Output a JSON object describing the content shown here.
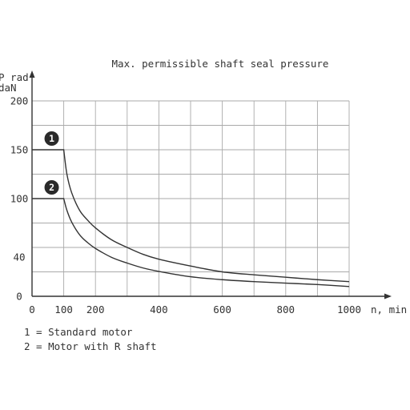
{
  "chart_data": {
    "type": "line",
    "title": "Max. permissible shaft seal pressure",
    "ylabel_line1": "P rad",
    "ylabel_line2": "daN",
    "xlabel": "n, min",
    "x_ticks": [
      0,
      100,
      200,
      400,
      600,
      800,
      1000
    ],
    "y_ticks": [
      0,
      40,
      100,
      150,
      200
    ],
    "xlim": [
      0,
      1000
    ],
    "ylim": [
      0,
      200
    ],
    "grid": true,
    "series": [
      {
        "name": "1",
        "label": "1",
        "color": "#333333",
        "points": [
          [
            0,
            150
          ],
          [
            100,
            150
          ],
          [
            110,
            125
          ],
          [
            125,
            106
          ],
          [
            150,
            88
          ],
          [
            175,
            78
          ],
          [
            200,
            70
          ],
          [
            250,
            58
          ],
          [
            300,
            50
          ],
          [
            350,
            43
          ],
          [
            400,
            38
          ],
          [
            500,
            31
          ],
          [
            600,
            25
          ],
          [
            700,
            22
          ],
          [
            800,
            19.5
          ],
          [
            900,
            17
          ],
          [
            1000,
            15
          ]
        ]
      },
      {
        "name": "2",
        "label": "2",
        "color": "#333333",
        "points": [
          [
            0,
            100
          ],
          [
            100,
            100
          ],
          [
            110,
            88
          ],
          [
            125,
            76
          ],
          [
            150,
            63
          ],
          [
            175,
            55
          ],
          [
            200,
            49
          ],
          [
            250,
            40
          ],
          [
            300,
            34
          ],
          [
            350,
            29
          ],
          [
            400,
            25.5
          ],
          [
            500,
            20
          ],
          [
            600,
            17
          ],
          [
            700,
            15
          ],
          [
            800,
            13.5
          ],
          [
            900,
            12
          ],
          [
            1000,
            10
          ]
        ]
      }
    ]
  },
  "legend": [
    "1 = Standard motor",
    "2 = Motor with R shaft"
  ]
}
